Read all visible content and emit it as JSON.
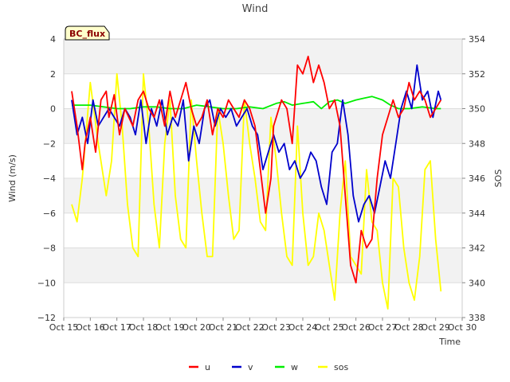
{
  "chart_data": {
    "type": "line",
    "title": "Wind",
    "badge": "BC_flux",
    "xlabel": "Time",
    "ylabel": "Wind (m/s)",
    "y2label": "SOS",
    "xlim": [
      15,
      30
    ],
    "ylim": [
      -12,
      4
    ],
    "y2lim": [
      338,
      354
    ],
    "grid": true,
    "legend_position": "bottom-center",
    "x_ticks": [
      15,
      16,
      17,
      18,
      19,
      20,
      21,
      22,
      23,
      24,
      25,
      26,
      27,
      28,
      29,
      30
    ],
    "x_tick_labels": [
      "Oct 15",
      "Oct 16",
      "Oct 17",
      "Oct 18",
      "Oct 19",
      "Oct 20",
      "Oct 21",
      "Oct 22",
      "Oct 23",
      "Oct 24",
      "Oct 25",
      "Oct 26",
      "Oct 27",
      "Oct 28",
      "Oct 29",
      "Oct 30"
    ],
    "y_ticks": [
      4,
      2,
      0,
      -2,
      -4,
      -6,
      -8,
      -10,
      -12
    ],
    "y_tick_labels": [
      "4",
      "2",
      "0",
      "−2",
      "−4",
      "−6",
      "−8",
      "−10",
      "−12"
    ],
    "y2_ticks": [
      354,
      352,
      350,
      348,
      346,
      344,
      342,
      340,
      338
    ],
    "y2_tick_labels": [
      "354",
      "352",
      "350",
      "348",
      "346",
      "344",
      "342",
      "340",
      "338"
    ],
    "series": [
      {
        "name": "u",
        "axis": "left",
        "color": "#ff0000",
        "x": [
          15.3,
          15.5,
          15.7,
          15.8,
          16.0,
          16.2,
          16.4,
          16.6,
          16.7,
          16.9,
          17.1,
          17.3,
          17.6,
          17.8,
          18.0,
          18.2,
          18.4,
          18.6,
          18.8,
          19.0,
          19.2,
          19.4,
          19.6,
          19.8,
          20.0,
          20.2,
          20.4,
          20.6,
          20.8,
          21.0,
          21.2,
          21.4,
          21.6,
          21.8,
          22.0,
          22.2,
          22.4,
          22.6,
          22.8,
          22.9,
          23.0,
          23.2,
          23.4,
          23.6,
          23.8,
          24.0,
          24.2,
          24.4,
          24.6,
          24.8,
          25.0,
          25.2,
          25.4,
          25.6,
          25.8,
          26.0,
          26.2,
          26.4,
          26.6,
          26.8,
          27.0,
          27.2,
          27.4,
          27.6,
          27.8,
          28.0,
          28.2,
          28.4,
          28.6,
          28.8,
          29.0,
          29.2
        ],
        "y": [
          1.0,
          -1.0,
          -3.5,
          -2.0,
          -0.5,
          -2.5,
          0.5,
          1.0,
          -0.5,
          0.8,
          -1.5,
          0.0,
          -1.0,
          0.5,
          1.0,
          0.0,
          -0.5,
          0.5,
          -1.0,
          1.0,
          -0.5,
          0.5,
          1.5,
          0.0,
          -1.0,
          -0.5,
          0.5,
          -1.5,
          0.0,
          -0.5,
          0.5,
          0.0,
          -0.5,
          0.5,
          0.0,
          -1.0,
          -3.5,
          -6.0,
          -4.0,
          -1.0,
          -0.5,
          0.5,
          0.0,
          -2.0,
          2.5,
          2.0,
          3.0,
          1.5,
          2.5,
          1.5,
          0.0,
          0.5,
          -1.0,
          -5.0,
          -9.0,
          -10.0,
          -7.0,
          -8.0,
          -7.5,
          -4.0,
          -1.5,
          -0.5,
          0.5,
          -0.5,
          0.0,
          1.5,
          0.5,
          1.0,
          0.5,
          -0.5,
          0.0,
          0.5
        ]
      },
      {
        "name": "v",
        "axis": "left",
        "color": "#0000cc",
        "x": [
          15.3,
          15.5,
          15.7,
          15.9,
          16.1,
          16.3,
          16.5,
          16.7,
          16.9,
          17.1,
          17.3,
          17.5,
          17.7,
          17.9,
          18.1,
          18.3,
          18.5,
          18.7,
          18.9,
          19.1,
          19.3,
          19.5,
          19.7,
          19.9,
          20.1,
          20.3,
          20.5,
          20.7,
          20.9,
          21.1,
          21.3,
          21.5,
          21.7,
          21.9,
          22.1,
          22.3,
          22.5,
          22.7,
          22.9,
          23.1,
          23.3,
          23.5,
          23.7,
          23.9,
          24.1,
          24.3,
          24.5,
          24.7,
          24.9,
          25.1,
          25.3,
          25.5,
          25.7,
          25.9,
          26.1,
          26.3,
          26.5,
          26.7,
          26.9,
          27.1,
          27.3,
          27.5,
          27.7,
          27.9,
          28.1,
          28.3,
          28.5,
          28.7,
          28.9,
          29.1,
          29.2
        ],
        "y": [
          0.5,
          -1.5,
          -0.5,
          -2.0,
          0.5,
          -1.0,
          -0.5,
          0.0,
          -0.5,
          -1.0,
          0.0,
          -0.5,
          -1.5,
          0.5,
          -2.0,
          0.0,
          -1.0,
          0.5,
          -1.5,
          -0.5,
          -1.0,
          0.5,
          -3.0,
          -1.0,
          -2.0,
          0.0,
          0.5,
          -1.0,
          0.0,
          -0.5,
          0.0,
          -1.0,
          -0.5,
          0.0,
          -1.0,
          -1.5,
          -3.5,
          -2.5,
          -1.5,
          -2.5,
          -2.0,
          -3.5,
          -3.0,
          -4.0,
          -3.5,
          -2.5,
          -3.0,
          -4.5,
          -5.5,
          -2.5,
          -2.0,
          0.5,
          -1.5,
          -5.0,
          -6.5,
          -5.5,
          -5.0,
          -6.0,
          -4.5,
          -3.0,
          -4.0,
          -2.0,
          0.0,
          1.0,
          0.0,
          2.5,
          0.5,
          1.0,
          -0.5,
          1.0,
          0.5
        ]
      },
      {
        "name": "w",
        "axis": "left",
        "color": "#00ee00",
        "x": [
          15.3,
          15.5,
          16.0,
          16.5,
          17.0,
          17.5,
          18.0,
          18.5,
          19.0,
          19.5,
          20.0,
          20.5,
          21.0,
          21.5,
          22.0,
          22.5,
          23.0,
          23.3,
          23.6,
          24.0,
          24.4,
          24.7,
          25.0,
          25.3,
          25.6,
          26.0,
          26.3,
          26.6,
          27.0,
          27.3,
          27.6,
          28.0,
          28.5,
          29.0,
          29.2
        ],
        "y": [
          0.2,
          0.2,
          0.2,
          0.1,
          0.0,
          0.0,
          0.1,
          0.1,
          0.0,
          0.0,
          0.2,
          0.1,
          0.0,
          0.0,
          0.1,
          0.0,
          0.3,
          0.4,
          0.2,
          0.3,
          0.4,
          0.0,
          0.4,
          0.5,
          0.3,
          0.5,
          0.6,
          0.7,
          0.5,
          0.2,
          0.0,
          0.0,
          0.1,
          0.0,
          0.0
        ]
      },
      {
        "name": "sos",
        "axis": "right",
        "color": "#ffff00",
        "x": [
          15.3,
          15.5,
          15.7,
          16.0,
          16.3,
          16.6,
          16.8,
          17.0,
          17.2,
          17.4,
          17.6,
          17.8,
          18.0,
          18.2,
          18.4,
          18.6,
          18.8,
          19.0,
          19.2,
          19.4,
          19.6,
          19.8,
          20.0,
          20.2,
          20.4,
          20.6,
          20.8,
          21.0,
          21.2,
          21.4,
          21.6,
          21.8,
          22.0,
          22.2,
          22.4,
          22.6,
          22.8,
          23.0,
          23.2,
          23.4,
          23.6,
          23.8,
          24.0,
          24.2,
          24.4,
          24.6,
          24.8,
          25.0,
          25.2,
          25.4,
          25.6,
          25.8,
          26.0,
          26.2,
          26.4,
          26.6,
          26.8,
          27.0,
          27.2,
          27.4,
          27.6,
          27.8,
          28.0,
          28.2,
          28.4,
          28.6,
          28.8,
          29.0,
          29.2
        ],
        "y": [
          344.5,
          343.5,
          346.0,
          351.5,
          348.0,
          345.0,
          347.0,
          352.0,
          349.0,
          344.5,
          342.0,
          341.5,
          352.0,
          349.0,
          344.5,
          342.0,
          348.0,
          350.5,
          345.0,
          342.5,
          342.0,
          350.5,
          347.0,
          344.0,
          341.5,
          341.5,
          350.0,
          348.0,
          345.0,
          342.5,
          343.0,
          350.5,
          348.0,
          346.0,
          343.5,
          343.0,
          349.5,
          347.0,
          344.0,
          341.5,
          341.0,
          349.0,
          344.0,
          341.0,
          341.5,
          344.0,
          343.0,
          341.0,
          339.0,
          344.0,
          347.0,
          341.5,
          341.0,
          340.5,
          346.5,
          343.5,
          343.0,
          340.0,
          338.5,
          346.0,
          345.5,
          342.0,
          340.0,
          339.0,
          341.5,
          346.5,
          347.0,
          342.5,
          339.5
        ]
      }
    ]
  }
}
